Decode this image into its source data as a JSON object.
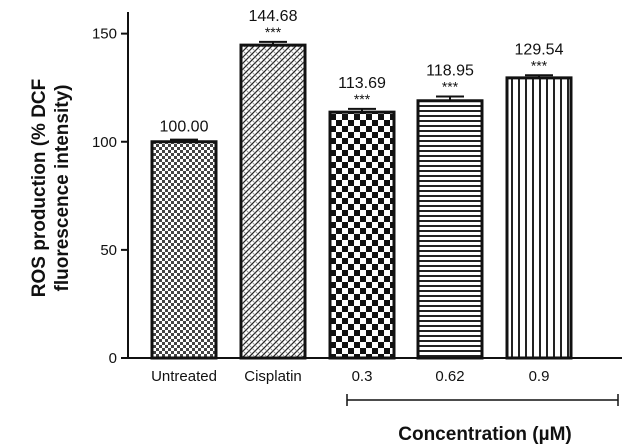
{
  "chart_data": {
    "type": "bar",
    "categories": [
      "Untreated",
      "Cisplatin",
      "0.3",
      "0.62",
      "0.9"
    ],
    "values": [
      100.0,
      144.68,
      113.69,
      118.95,
      129.54
    ],
    "value_labels": [
      "100.00",
      "144.68",
      "113.69",
      "118.95",
      "129.54"
    ],
    "error": [
      1.0,
      1.5,
      1.5,
      2.0,
      1.2
    ],
    "significance": [
      "",
      "***",
      "***",
      "***",
      "***"
    ],
    "ylabel_line1": "ROS production (% DCF",
    "ylabel_line2": "fluorescence intensity)",
    "xlabel": "Concentration (µM)",
    "ylim": [
      0,
      160
    ],
    "yticks": [
      0,
      50,
      100,
      150
    ],
    "patterns": [
      "fine-checker",
      "diagonal-hatch",
      "coarse-checker",
      "horizontal-lines",
      "vertical-lines"
    ],
    "bracket_span": [
      "0.3",
      "0.9"
    ],
    "grid": false,
    "legend": "none"
  }
}
